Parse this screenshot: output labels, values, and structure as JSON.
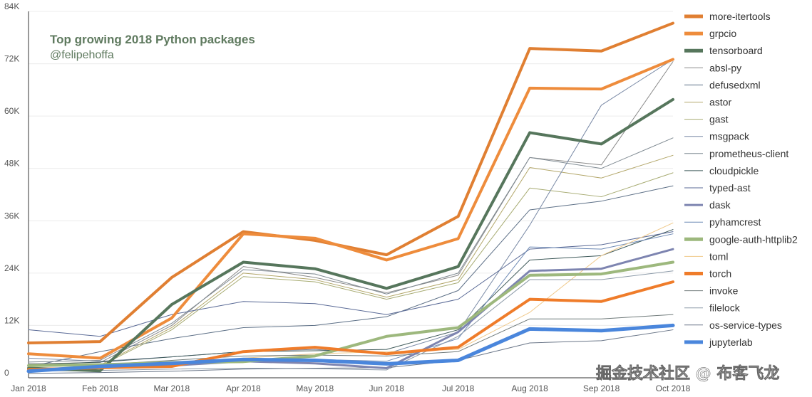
{
  "chart_data": {
    "type": "line",
    "title": "Top growing 2018 Python packages",
    "subtitle": "@felipehoffa",
    "categories": [
      "Jan 2018",
      "Feb 2018",
      "Mar 2018",
      "Apr 2018",
      "May 2018",
      "Jun 2018",
      "Jul 2018",
      "Aug 2018",
      "Sep 2018",
      "Oct 2018"
    ],
    "ylim": [
      0,
      84000
    ],
    "yticks": [
      0,
      12000,
      24000,
      36000,
      48000,
      60000,
      72000,
      84000
    ],
    "ytick_labels": [
      "0",
      "12K",
      "24K",
      "36K",
      "48K",
      "60K",
      "72K",
      "84K"
    ],
    "xlabel": "",
    "ylabel": "",
    "legend_position": "right",
    "series": [
      {
        "name": "more-itertools",
        "color": "#e07f32",
        "weight": "thick",
        "values": [
          8000,
          8300,
          23000,
          33500,
          31500,
          28200,
          37000,
          75500,
          74900,
          81300
        ]
      },
      {
        "name": "grpcio",
        "color": "#ee8c3c",
        "weight": "thick",
        "values": [
          5500,
          4500,
          13700,
          33000,
          32000,
          27000,
          31900,
          66400,
          66200,
          73000
        ]
      },
      {
        "name": "tensorboard",
        "color": "#56765c",
        "weight": "thick",
        "values": [
          2200,
          1600,
          16800,
          26500,
          25000,
          20500,
          25500,
          56200,
          53600,
          63800
        ]
      },
      {
        "name": "absl-py",
        "color": "#8a8a8a",
        "weight": "thin",
        "values": [
          3200,
          3500,
          12000,
          25500,
          23000,
          19500,
          23500,
          50500,
          48800,
          72500
        ]
      },
      {
        "name": "defusedxml",
        "color": "#5c6f86",
        "weight": "thin",
        "values": [
          2500,
          6000,
          9000,
          11500,
          12000,
          14000,
          20000,
          38500,
          40500,
          44000
        ]
      },
      {
        "name": "astor",
        "color": "#b3a76a",
        "weight": "thin",
        "values": [
          2600,
          2900,
          11500,
          24000,
          22500,
          18500,
          22500,
          48200,
          45800,
          51000
        ]
      },
      {
        "name": "gast",
        "color": "#a7ab72",
        "weight": "thin",
        "values": [
          2800,
          2700,
          11000,
          23200,
          22000,
          18000,
          21800,
          43500,
          41500,
          47000
        ]
      },
      {
        "name": "msgpack",
        "color": "#7a8aa6",
        "weight": "thin",
        "values": [
          4500,
          3800,
          4800,
          6000,
          6500,
          5500,
          10500,
          35000,
          62500,
          73000
        ]
      },
      {
        "name": "prometheus-client",
        "color": "#7f8a92",
        "weight": "thin",
        "values": [
          3600,
          4000,
          12500,
          24800,
          23800,
          19200,
          24000,
          50500,
          48000,
          55000
        ]
      },
      {
        "name": "cloudpickle",
        "color": "#3f5a5a",
        "weight": "thin",
        "values": [
          3000,
          3600,
          4800,
          6000,
          6200,
          6500,
          11000,
          27000,
          28000,
          34000
        ]
      },
      {
        "name": "typed-ast",
        "color": "#5a6a96",
        "weight": "thin",
        "values": [
          11000,
          9500,
          14500,
          17500,
          17000,
          14500,
          18000,
          29500,
          30500,
          33500
        ]
      },
      {
        "name": "dask",
        "color": "#7d84b0",
        "weight": "medium",
        "values": [
          1800,
          2300,
          2800,
          3800,
          3300,
          2200,
          10500,
          24500,
          25000,
          29500
        ]
      },
      {
        "name": "pyhamcrest",
        "color": "#6e8ab5",
        "weight": "thin",
        "values": [
          2000,
          2500,
          3300,
          4000,
          4200,
          3800,
          9000,
          30000,
          29500,
          33000
        ]
      },
      {
        "name": "google-auth-httplib2",
        "color": "#9db87d",
        "weight": "thick",
        "values": [
          2800,
          3000,
          3500,
          3700,
          5000,
          9500,
          11500,
          23500,
          23800,
          26500
        ]
      },
      {
        "name": "toml",
        "color": "#f0c98a",
        "weight": "thin",
        "values": [
          2100,
          2300,
          3000,
          4500,
          5500,
          6000,
          6500,
          15000,
          28000,
          35500
        ]
      },
      {
        "name": "torch",
        "color": "#ef7c2a",
        "weight": "thick",
        "values": [
          1900,
          2300,
          2600,
          6000,
          7000,
          5500,
          7000,
          18000,
          17500,
          22000
        ]
      },
      {
        "name": "invoke",
        "color": "#6f7a7a",
        "weight": "thin",
        "values": [
          3200,
          3000,
          4000,
          5000,
          5200,
          5000,
          6000,
          13500,
          13500,
          14500
        ]
      },
      {
        "name": "filelock",
        "color": "#8c9aa8",
        "weight": "thin",
        "values": [
          1500,
          1700,
          2000,
          2200,
          2100,
          1800,
          9500,
          22500,
          22500,
          24500
        ]
      },
      {
        "name": "os-service-types",
        "color": "#6a7688",
        "weight": "thin",
        "values": [
          1000,
          1200,
          1500,
          2000,
          2200,
          2300,
          4000,
          8000,
          8500,
          11000
        ]
      },
      {
        "name": "jupyterlab",
        "color": "#4a86dc",
        "weight": "extra",
        "values": [
          1500,
          2600,
          3300,
          4200,
          4000,
          3200,
          4000,
          11200,
          10800,
          12000
        ]
      }
    ]
  },
  "watermark": "掘金技术社区 @ 布客飞龙"
}
